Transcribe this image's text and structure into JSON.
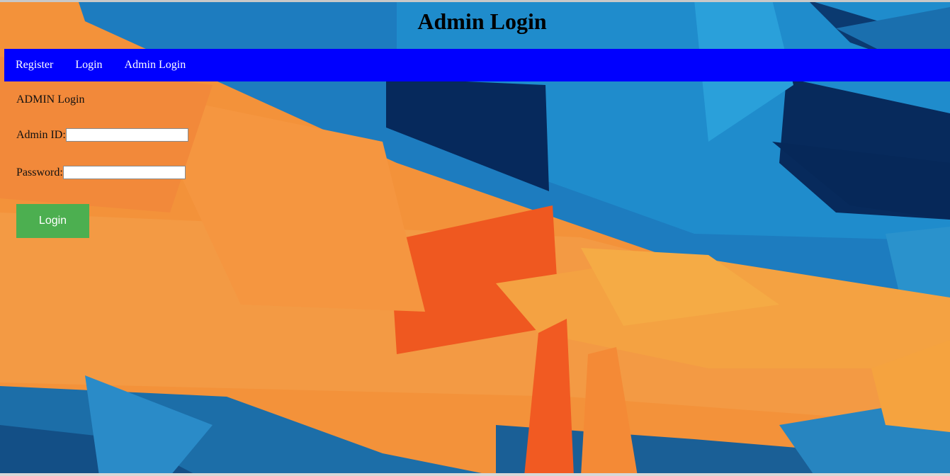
{
  "page": {
    "title": "Admin Login"
  },
  "nav": {
    "items": [
      {
        "label": "Register"
      },
      {
        "label": "Login"
      },
      {
        "label": "Admin Login"
      }
    ]
  },
  "form": {
    "section_title": "ADMIN Login",
    "admin_id_label": "Admin ID:",
    "admin_id_value": "",
    "password_label": "Password:",
    "password_value": "",
    "submit_label": "Login"
  },
  "colors": {
    "navbar": "#0000ff",
    "button": "#4caf50",
    "bg_orange": "#f4933a",
    "bg_blue": "#1b7bbd",
    "bg_navy": "#062a5a"
  }
}
